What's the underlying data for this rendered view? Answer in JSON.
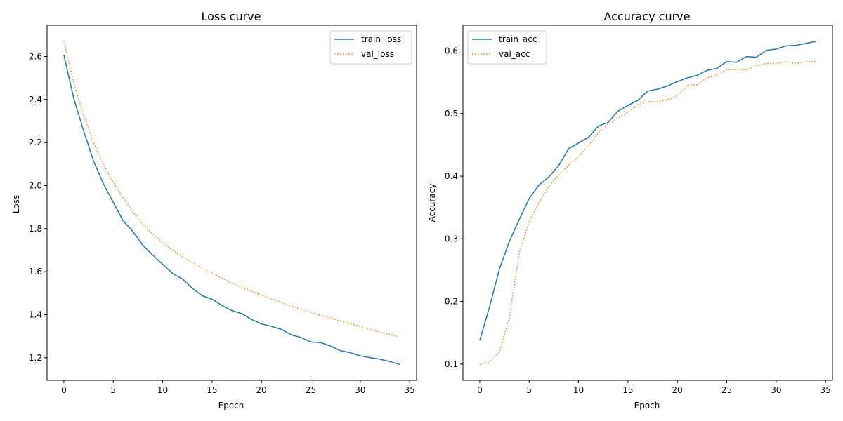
{
  "chart_data": [
    {
      "type": "line",
      "title": "Loss curve",
      "xlabel": "Epoch",
      "ylabel": "Loss",
      "xlim": [
        -1.7,
        35.7
      ],
      "ylim": [
        1.095,
        2.745
      ],
      "xticks": [
        0,
        5,
        10,
        15,
        20,
        25,
        30,
        35
      ],
      "xtick_labels": [
        "0",
        "5",
        "10",
        "15",
        "20",
        "25",
        "30",
        "35"
      ],
      "yticks": [
        1.2,
        1.4,
        1.6,
        1.8,
        2.0,
        2.2,
        2.4,
        2.6
      ],
      "ytick_labels": [
        "1.2",
        "1.4",
        "1.6",
        "1.8",
        "2.0",
        "2.2",
        "2.4",
        "2.6"
      ],
      "grid": false,
      "legend_position": "top-right",
      "x": [
        0,
        1,
        2,
        3,
        4,
        5,
        6,
        7,
        8,
        9,
        10,
        11,
        12,
        13,
        14,
        15,
        16,
        17,
        18,
        19,
        20,
        21,
        22,
        23,
        24,
        25,
        26,
        27,
        28,
        29,
        30,
        31,
        32,
        33,
        34
      ],
      "series": [
        {
          "name": "train_loss",
          "color": "#1f77b4",
          "style": "solid",
          "values": [
            2.607,
            2.405,
            2.255,
            2.115,
            2.008,
            1.922,
            1.837,
            1.786,
            1.722,
            1.677,
            1.634,
            1.592,
            1.566,
            1.523,
            1.488,
            1.472,
            1.443,
            1.419,
            1.405,
            1.378,
            1.357,
            1.346,
            1.332,
            1.307,
            1.294,
            1.273,
            1.27,
            1.254,
            1.233,
            1.223,
            1.209,
            1.2,
            1.193,
            1.182,
            1.169
          ]
        },
        {
          "name": "val_loss",
          "color": "#ff7f0e",
          "style": "dotted",
          "values": [
            2.673,
            2.475,
            2.328,
            2.201,
            2.097,
            2.015,
            1.942,
            1.876,
            1.821,
            1.775,
            1.735,
            1.7,
            1.67,
            1.643,
            1.617,
            1.593,
            1.57,
            1.548,
            1.528,
            1.509,
            1.491,
            1.474,
            1.457,
            1.441,
            1.426,
            1.411,
            1.397,
            1.384,
            1.371,
            1.358,
            1.345,
            1.332,
            1.319,
            1.308,
            1.297
          ]
        }
      ]
    },
    {
      "type": "line",
      "title": "Accuracy curve",
      "xlabel": "Epoch",
      "ylabel": "Accuracy",
      "xlim": [
        -1.7,
        35.7
      ],
      "ylim": [
        0.074,
        0.641
      ],
      "xticks": [
        0,
        5,
        10,
        15,
        20,
        25,
        30,
        35
      ],
      "xtick_labels": [
        "0",
        "5",
        "10",
        "15",
        "20",
        "25",
        "30",
        "35"
      ],
      "yticks": [
        0.1,
        0.2,
        0.3,
        0.4,
        0.5,
        0.6
      ],
      "ytick_labels": [
        "0.1",
        "0.2",
        "0.3",
        "0.4",
        "0.5",
        "0.6"
      ],
      "grid": false,
      "legend_position": "top-left",
      "x": [
        0,
        1,
        2,
        3,
        4,
        5,
        6,
        7,
        8,
        9,
        10,
        11,
        12,
        13,
        14,
        15,
        16,
        17,
        18,
        19,
        20,
        21,
        22,
        23,
        24,
        25,
        26,
        27,
        28,
        29,
        30,
        31,
        32,
        33,
        34
      ],
      "series": [
        {
          "name": "train_acc",
          "color": "#1f77b4",
          "style": "solid",
          "values": [
            0.138,
            0.192,
            0.252,
            0.296,
            0.331,
            0.364,
            0.386,
            0.399,
            0.417,
            0.444,
            0.453,
            0.462,
            0.48,
            0.486,
            0.504,
            0.513,
            0.521,
            0.536,
            0.539,
            0.544,
            0.551,
            0.557,
            0.561,
            0.569,
            0.572,
            0.583,
            0.582,
            0.591,
            0.59,
            0.601,
            0.603,
            0.608,
            0.609,
            0.612,
            0.615
          ]
        },
        {
          "name": "val_acc",
          "color": "#ff7f0e",
          "style": "dotted",
          "values": [
            0.099,
            0.104,
            0.119,
            0.175,
            0.278,
            0.327,
            0.358,
            0.384,
            0.402,
            0.418,
            0.431,
            0.449,
            0.469,
            0.484,
            0.493,
            0.502,
            0.514,
            0.519,
            0.519,
            0.522,
            0.528,
            0.545,
            0.546,
            0.557,
            0.562,
            0.57,
            0.57,
            0.57,
            0.576,
            0.58,
            0.58,
            0.583,
            0.58,
            0.583,
            0.583
          ]
        }
      ]
    }
  ]
}
